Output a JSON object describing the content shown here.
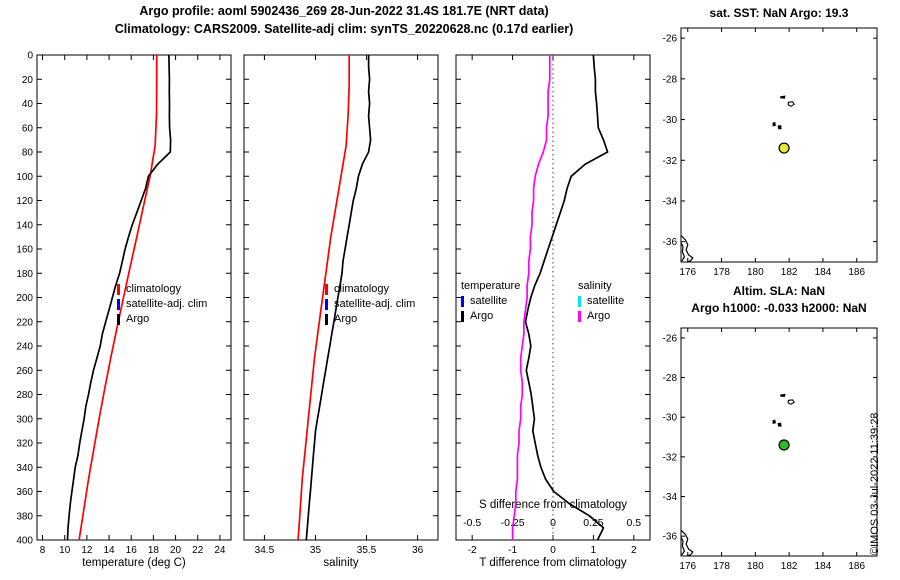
{
  "titles": {
    "line1": "Argo profile: aoml 5902436_269 28-Jun-2022 31.4S 181.7E (NRT data)",
    "line2": "Climatology: CARS2009. Satellite-adj clim: synTS_20220628.nc (0.17d earlier)"
  },
  "copyright": "©IMOS 03-Jul-2022 11:39:23",
  "legends": {
    "profile": [
      {
        "label": "climatology",
        "color": "#ff0000"
      },
      {
        "label": "satellite-adj. clim",
        "color": "#0000ff"
      },
      {
        "label": "Argo",
        "color": "#000000"
      }
    ],
    "diff": {
      "temperature": {
        "header": "temperature",
        "items": [
          {
            "label": "satellite",
            "color": "#0000ff"
          },
          {
            "label": "Argo",
            "color": "#000000"
          }
        ]
      },
      "salinity": {
        "header": "salinity",
        "items": [
          {
            "label": "satellite",
            "color": "#00e5ee"
          },
          {
            "label": "Argo",
            "color": "#ff00ff"
          }
        ]
      }
    }
  },
  "chart_data": [
    {
      "type": "line",
      "name": "temperature-profile",
      "xlabel": "temperature (deg C)",
      "xlim": [
        7.5,
        25
      ],
      "xticks": [
        8,
        10,
        12,
        14,
        16,
        18,
        20,
        22,
        24
      ],
      "ylim": [
        0,
        400
      ],
      "yticks": [
        0,
        20,
        40,
        60,
        80,
        100,
        120,
        140,
        160,
        180,
        200,
        220,
        240,
        260,
        280,
        300,
        320,
        340,
        360,
        380,
        400
      ],
      "y_tick_labels": true,
      "depths": [
        0,
        10,
        20,
        30,
        40,
        50,
        60,
        70,
        80,
        90,
        100,
        110,
        120,
        130,
        140,
        150,
        160,
        170,
        180,
        190,
        200,
        210,
        220,
        230,
        240,
        250,
        260,
        270,
        280,
        290,
        300,
        310,
        320,
        330,
        340,
        350,
        360,
        370,
        380,
        390,
        400
      ],
      "depths_clim": [
        0,
        25,
        50,
        75,
        100,
        125,
        150,
        175,
        200,
        225,
        250,
        275,
        300,
        325,
        350,
        375,
        400
      ],
      "series": [
        {
          "name": "climatology",
          "color": "#ff0000",
          "depth_set": "clim",
          "values": [
            18.3,
            18.3,
            18.28,
            18.15,
            17.7,
            17.1,
            16.5,
            15.9,
            15.3,
            14.72,
            14.15,
            13.62,
            13.1,
            12.62,
            12.15,
            11.72,
            11.3
          ]
        },
        {
          "name": "Argo",
          "color": "#000000",
          "depth_set": "main",
          "values": [
            19.4,
            19.42,
            19.44,
            19.43,
            19.45,
            19.44,
            19.46,
            19.55,
            19.52,
            18.4,
            17.55,
            17.3,
            16.9,
            16.5,
            16.1,
            15.75,
            15.45,
            15.2,
            14.95,
            14.6,
            14.3,
            14.0,
            13.7,
            13.4,
            13.2,
            12.9,
            12.6,
            12.35,
            12.15,
            11.9,
            11.75,
            11.55,
            11.35,
            11.2,
            10.95,
            10.8,
            10.65,
            10.5,
            10.4,
            10.3,
            10.25
          ]
        }
      ]
    },
    {
      "type": "line",
      "name": "salinity-profile",
      "xlabel": "salinity",
      "xlim": [
        34.3,
        36.2
      ],
      "xticks": [
        34.5,
        35,
        35.5,
        36
      ],
      "ylim": [
        0,
        400
      ],
      "yticks": [
        0,
        20,
        40,
        60,
        80,
        100,
        120,
        140,
        160,
        180,
        200,
        220,
        240,
        260,
        280,
        300,
        320,
        340,
        360,
        380,
        400
      ],
      "y_tick_labels": false,
      "depths": [
        0,
        10,
        20,
        30,
        40,
        50,
        60,
        70,
        80,
        90,
        100,
        110,
        120,
        130,
        140,
        150,
        160,
        170,
        180,
        190,
        200,
        210,
        220,
        230,
        240,
        250,
        260,
        270,
        280,
        290,
        300,
        310,
        320,
        330,
        340,
        350,
        360,
        370,
        380,
        390,
        400
      ],
      "depths_clim": [
        0,
        25,
        50,
        75,
        100,
        125,
        150,
        175,
        200,
        225,
        250,
        275,
        300,
        325,
        350,
        375,
        400
      ],
      "series": [
        {
          "name": "climatology",
          "color": "#ff0000",
          "depth_set": "clim",
          "values": [
            35.33,
            35.33,
            35.32,
            35.3,
            35.25,
            35.2,
            35.15,
            35.11,
            35.07,
            35.03,
            34.99,
            34.96,
            34.93,
            34.9,
            34.87,
            34.85,
            34.83
          ]
        },
        {
          "name": "Argo",
          "color": "#000000",
          "depth_set": "main",
          "values": [
            35.52,
            35.52,
            35.53,
            35.52,
            35.53,
            35.52,
            35.53,
            35.54,
            35.52,
            35.46,
            35.42,
            35.4,
            35.37,
            35.35,
            35.33,
            35.31,
            35.29,
            35.27,
            35.26,
            35.24,
            35.22,
            35.2,
            35.18,
            35.16,
            35.14,
            35.12,
            35.1,
            35.08,
            35.06,
            35.04,
            35.02,
            35.0,
            34.99,
            34.98,
            34.97,
            34.96,
            34.95,
            34.94,
            34.93,
            34.92,
            34.91
          ]
        }
      ]
    },
    {
      "type": "line",
      "name": "difference-profile",
      "xlabel": "T difference from climatology",
      "xlim": [
        -2.4,
        2.4
      ],
      "xticks": [
        -2,
        -1,
        0,
        1,
        2
      ],
      "ylim": [
        0,
        400
      ],
      "yticks": [
        0,
        20,
        40,
        60,
        80,
        100,
        120,
        140,
        160,
        180,
        200,
        220,
        240,
        260,
        280,
        300,
        320,
        340,
        360,
        380,
        400
      ],
      "y_tick_labels": false,
      "zero_line": 0,
      "s_axis": {
        "label": "S difference from climatology",
        "ticks": [
          -0.5,
          -0.25,
          0,
          0.25,
          0.5
        ],
        "scale": 4
      },
      "depths": [
        0,
        10,
        20,
        30,
        40,
        50,
        60,
        70,
        80,
        90,
        100,
        110,
        120,
        130,
        140,
        150,
        160,
        170,
        180,
        190,
        200,
        210,
        220,
        230,
        240,
        250,
        260,
        270,
        280,
        290,
        300,
        310,
        320,
        330,
        340,
        350,
        360,
        370,
        380,
        390,
        400
      ],
      "series": [
        {
          "name": "T-diff-Argo",
          "color": "#000000",
          "depth_set": "main",
          "values": [
            1.0,
            1.02,
            1.05,
            1.05,
            1.08,
            1.1,
            1.12,
            1.25,
            1.35,
            0.8,
            0.45,
            0.35,
            0.28,
            0.18,
            0.08,
            -0.02,
            -0.12,
            -0.22,
            -0.32,
            -0.45,
            -0.55,
            -0.62,
            -0.68,
            -0.6,
            -0.55,
            -0.6,
            -0.66,
            -0.6,
            -0.54,
            -0.5,
            -0.46,
            -0.5,
            -0.44,
            -0.38,
            -0.3,
            -0.18,
            0.02,
            0.4,
            0.9,
            1.25,
            1.1
          ]
        },
        {
          "name": "S-diff-Argo",
          "color": "#ff00ff",
          "depth_set": "main",
          "scale": 4,
          "values": [
            -0.02,
            -0.02,
            -0.02,
            -0.03,
            -0.03,
            -0.03,
            -0.04,
            -0.04,
            -0.06,
            -0.09,
            -0.11,
            -0.12,
            -0.12,
            -0.13,
            -0.13,
            -0.14,
            -0.14,
            -0.15,
            -0.15,
            -0.16,
            -0.16,
            -0.17,
            -0.18,
            -0.18,
            -0.19,
            -0.2,
            -0.2,
            -0.19,
            -0.19,
            -0.2,
            -0.2,
            -0.21,
            -0.21,
            -0.22,
            -0.22,
            -0.22,
            -0.23,
            -0.23,
            -0.24,
            -0.25,
            -0.25
          ]
        }
      ]
    },
    {
      "type": "map",
      "name": "sst-map",
      "title": "sat. SST: NaN Argo: 19.3",
      "xlim": [
        175.6,
        187.2
      ],
      "ylim": [
        -37.0,
        -25.5
      ],
      "xticks": [
        176,
        178,
        180,
        182,
        184,
        186
      ],
      "yticks": [
        -26,
        -28,
        -30,
        -32,
        -34,
        -36
      ],
      "marker": {
        "lon": 181.7,
        "lat": -31.4,
        "fill": "#e8e832"
      },
      "islands": [
        {
          "pts": [
            [
              181.5,
              -28.88
            ],
            [
              181.75,
              -28.85
            ],
            [
              181.72,
              -28.95
            ],
            [
              181.5,
              -28.93
            ]
          ],
          "solid": true
        },
        {
          "pts": [
            [
              181.95,
              -29.15
            ],
            [
              182.2,
              -29.12
            ],
            [
              182.3,
              -29.25
            ],
            [
              182.1,
              -29.35
            ],
            [
              181.95,
              -29.28
            ]
          ],
          "solid": false
        },
        {
          "pts": [
            [
              181.05,
              -30.18
            ],
            [
              181.15,
              -30.15
            ],
            [
              181.18,
              -30.28
            ],
            [
              181.05,
              -30.3
            ]
          ],
          "solid": true
        },
        {
          "pts": [
            [
              181.35,
              -30.32
            ],
            [
              181.5,
              -30.3
            ],
            [
              181.52,
              -30.45
            ],
            [
              181.38,
              -30.45
            ]
          ],
          "solid": true
        }
      ],
      "coast": [
        [
          [
            175.6,
            -35.7
          ],
          [
            175.85,
            -35.9
          ],
          [
            176.0,
            -36.15
          ],
          [
            175.9,
            -36.4
          ],
          [
            176.05,
            -36.65
          ],
          [
            176.3,
            -36.8
          ],
          [
            176.15,
            -36.95
          ],
          [
            175.95,
            -37.0
          ]
        ],
        [
          [
            175.6,
            -36.05
          ],
          [
            175.72,
            -36.25
          ],
          [
            175.68,
            -36.5
          ],
          [
            175.8,
            -36.75
          ],
          [
            175.65,
            -36.95
          ]
        ]
      ]
    },
    {
      "type": "map",
      "name": "sla-map",
      "title_lines": [
        "Altim. SLA: NaN",
        "Argo h1000: -0.033 h2000: NaN"
      ],
      "xlim": [
        175.6,
        187.2
      ],
      "ylim": [
        -37.0,
        -25.5
      ],
      "xticks": [
        176,
        178,
        180,
        182,
        184,
        186
      ],
      "yticks": [
        -26,
        -28,
        -30,
        -32,
        -34,
        -36
      ],
      "marker": {
        "lon": 181.7,
        "lat": -31.4,
        "fill": "#2eb82e"
      },
      "islands": [
        {
          "pts": [
            [
              181.5,
              -28.88
            ],
            [
              181.75,
              -28.85
            ],
            [
              181.72,
              -28.95
            ],
            [
              181.5,
              -28.93
            ]
          ],
          "solid": true
        },
        {
          "pts": [
            [
              181.95,
              -29.15
            ],
            [
              182.2,
              -29.12
            ],
            [
              182.3,
              -29.25
            ],
            [
              182.1,
              -29.35
            ],
            [
              181.95,
              -29.28
            ]
          ],
          "solid": false
        },
        {
          "pts": [
            [
              181.05,
              -30.18
            ],
            [
              181.15,
              -30.15
            ],
            [
              181.18,
              -30.28
            ],
            [
              181.05,
              -30.3
            ]
          ],
          "solid": true
        },
        {
          "pts": [
            [
              181.35,
              -30.32
            ],
            [
              181.5,
              -30.3
            ],
            [
              181.52,
              -30.45
            ],
            [
              181.38,
              -30.45
            ]
          ],
          "solid": true
        }
      ],
      "coast": [
        [
          [
            175.6,
            -35.7
          ],
          [
            175.85,
            -35.9
          ],
          [
            176.0,
            -36.15
          ],
          [
            175.9,
            -36.4
          ],
          [
            176.05,
            -36.65
          ],
          [
            176.3,
            -36.8
          ],
          [
            176.15,
            -36.95
          ],
          [
            175.95,
            -37.0
          ]
        ],
        [
          [
            175.6,
            -36.05
          ],
          [
            175.72,
            -36.25
          ],
          [
            175.68,
            -36.5
          ],
          [
            175.8,
            -36.75
          ],
          [
            175.65,
            -36.95
          ]
        ]
      ]
    }
  ]
}
